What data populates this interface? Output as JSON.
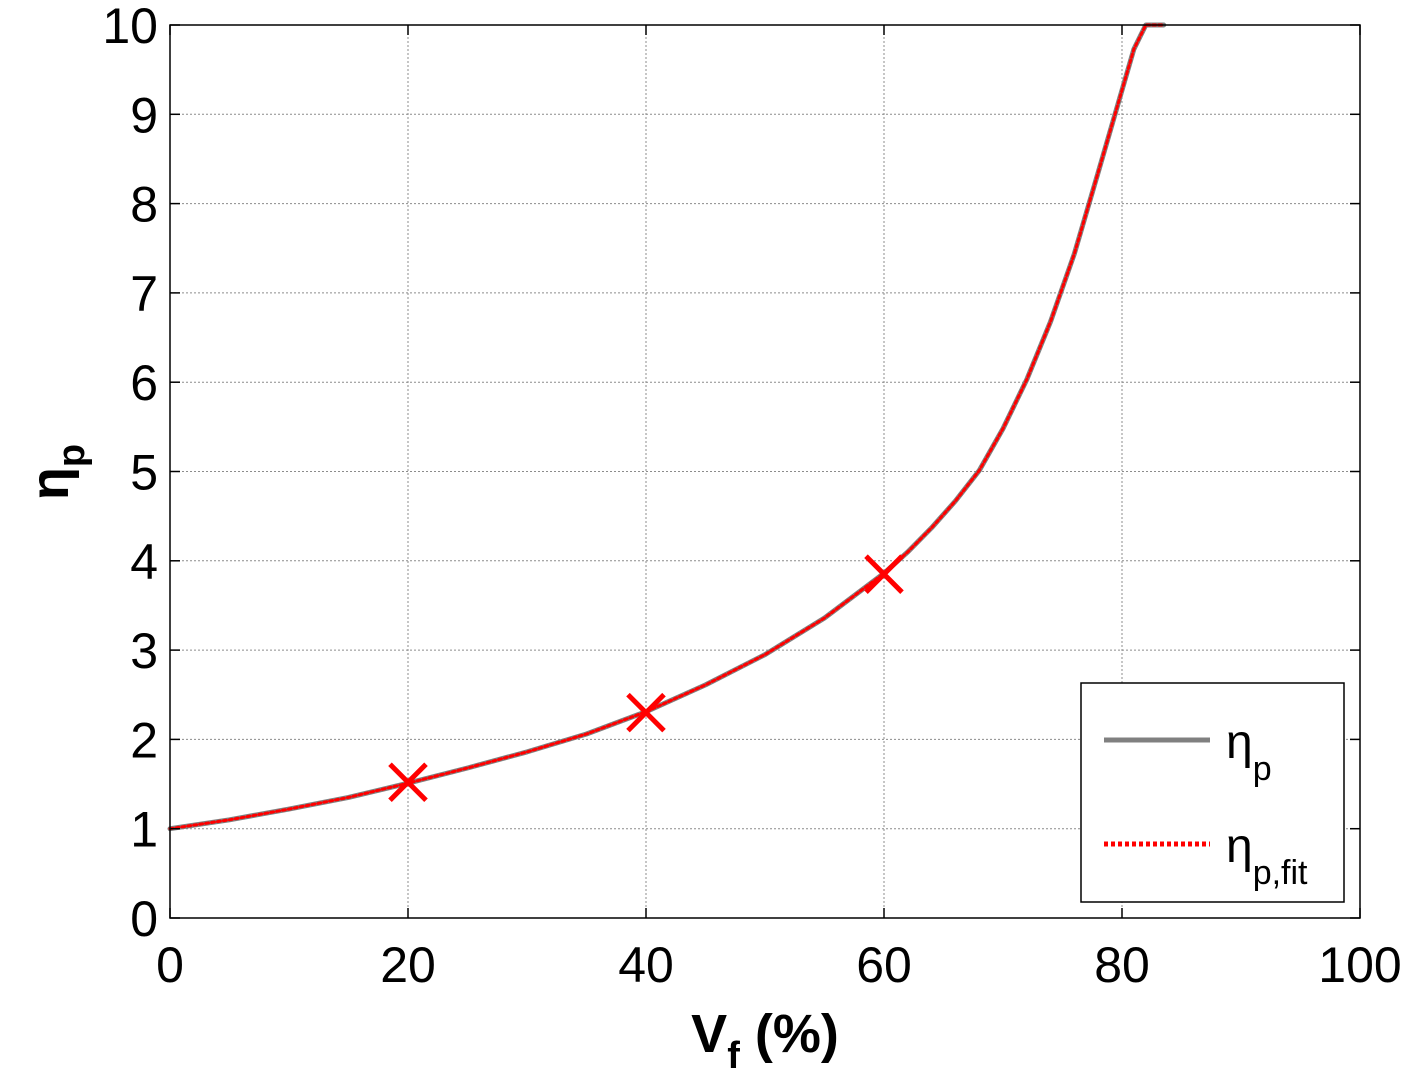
{
  "chart_data": {
    "type": "line",
    "xlabel": {
      "main": "V",
      "sub": "f",
      "suffix": " (%)"
    },
    "ylabel": {
      "main": "η",
      "sub": "p"
    },
    "xlim": [
      0,
      100
    ],
    "ylim": [
      0,
      10
    ],
    "xticks": [
      0,
      20,
      40,
      60,
      80,
      100
    ],
    "yticks": [
      0,
      1,
      2,
      3,
      4,
      5,
      6,
      7,
      8,
      9,
      10
    ],
    "grid": true,
    "legend_position": "bottom-right",
    "series": [
      {
        "name": "η_p",
        "legend": {
          "main": "η",
          "sub": "p"
        },
        "style": "solid",
        "color": "#808080",
        "x": [
          0,
          5,
          10,
          15,
          20,
          25,
          30,
          35,
          40,
          45,
          50,
          55,
          60,
          62,
          64,
          66,
          68,
          70,
          72,
          74,
          76,
          78,
          80,
          81,
          82,
          83,
          83.5
        ],
        "y": [
          1.0,
          1.1,
          1.22,
          1.35,
          1.51,
          1.68,
          1.86,
          2.06,
          2.31,
          2.61,
          2.95,
          3.36,
          3.86,
          4.1,
          4.37,
          4.67,
          5.01,
          5.48,
          6.03,
          6.68,
          7.44,
          8.35,
          9.27,
          9.73,
          10.0,
          10.0,
          10.0
        ]
      },
      {
        "name": "η_p,fit",
        "legend": {
          "main": "η",
          "sub": "p,fit"
        },
        "style": "dotted",
        "color": "#ff0000",
        "x": [
          0,
          5,
          10,
          15,
          20,
          25,
          30,
          35,
          40,
          45,
          50,
          55,
          60,
          62,
          64,
          66,
          68,
          70,
          72,
          74,
          76,
          78,
          80,
          81,
          82,
          83,
          83.5
        ],
        "y": [
          1.0,
          1.1,
          1.22,
          1.35,
          1.51,
          1.68,
          1.86,
          2.06,
          2.31,
          2.61,
          2.95,
          3.36,
          3.86,
          4.1,
          4.37,
          4.67,
          5.01,
          5.48,
          6.03,
          6.68,
          7.44,
          8.35,
          9.27,
          9.73,
          10.0,
          10.0,
          10.0
        ]
      }
    ],
    "markers": {
      "symbol": "x",
      "color": "#ff0000",
      "points": [
        {
          "x": 20,
          "y": 1.52
        },
        {
          "x": 40,
          "y": 2.3
        },
        {
          "x": 60,
          "y": 3.85
        }
      ]
    }
  }
}
